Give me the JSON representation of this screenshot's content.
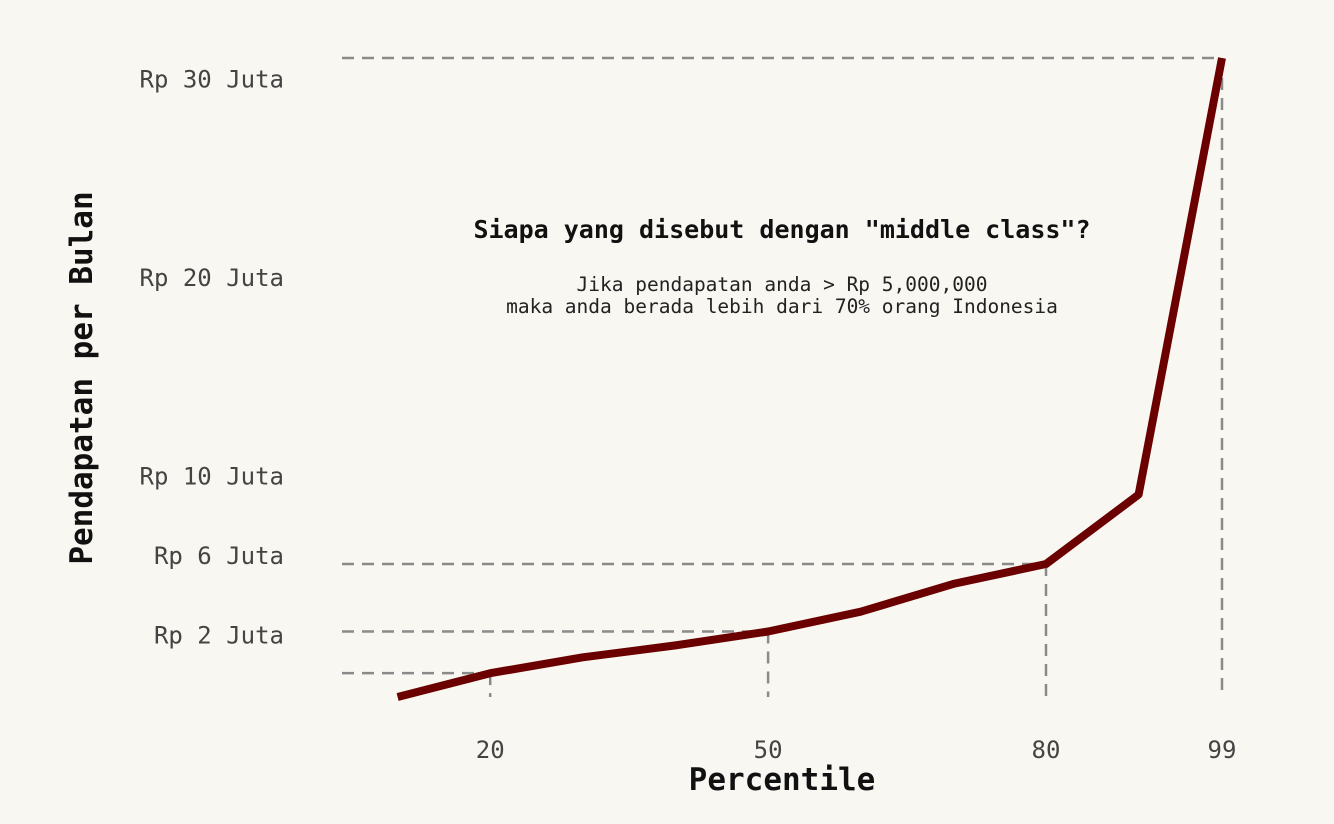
{
  "chart_data": {
    "type": "line",
    "xlabel": "Percentile",
    "ylabel": "Pendapatan per Bulan",
    "x": [
      10,
      20,
      30,
      40,
      50,
      60,
      70,
      80,
      90,
      99
    ],
    "series": [
      {
        "values": [
          0,
          1200000,
          2000000,
          2600000,
          3300000,
          4300000,
          5700000,
          6700000,
          10200000,
          32200000
        ]
      }
    ],
    "xticks": [
      20,
      50,
      80,
      99
    ],
    "xtick_labels": [
      "20",
      "50",
      "80",
      "99"
    ],
    "yticks": [
      2000000,
      6000000,
      10000000,
      20000000,
      30000000
    ],
    "ytick_labels": [
      "Rp 2 Juta",
      "Rp 6 Juta",
      "Rp 10 Juta",
      "Rp 20 Juta",
      "Rp 30 Juta"
    ],
    "xlim": [
      4,
      100
    ],
    "ylim": [
      0,
      31000000
    ],
    "reference_lines": [
      {
        "x": 20,
        "y": 1200000
      },
      {
        "x": 50,
        "y": 3300000
      },
      {
        "x": 80,
        "y": 6700000
      },
      {
        "x": 99,
        "y": 32200000
      }
    ],
    "grid": false,
    "annotation": {
      "title": "Siapa yang disebut dengan \"middle class\"?",
      "lines": [
        "Jika pendapatan anda > Rp 5,000,000",
        "maka anda berada lebih dari 70% orang Indonesia"
      ]
    },
    "colors": {
      "line": "#6b0000",
      "guide": "#8a8a8a",
      "background": "#f9f7f1"
    }
  }
}
